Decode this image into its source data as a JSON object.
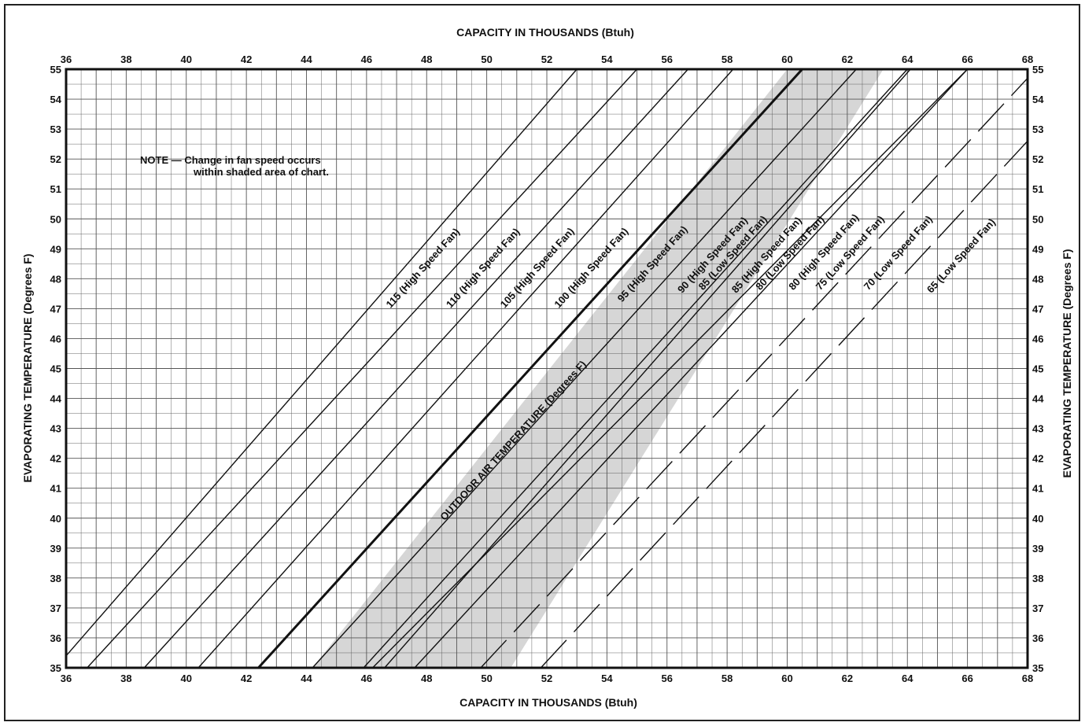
{
  "chart_data": {
    "type": "line",
    "title": "CAPACITY IN THOUSANDS (Btuh)",
    "xlabel": "CAPACITY IN THOUSANDS (Btuh)",
    "ylabel": "EVAPORATING TEMPERATURE (Degrees F)",
    "xlim": [
      36,
      68
    ],
    "ylim": [
      35,
      55
    ],
    "x_ticks": [
      "36",
      "38",
      "40",
      "42",
      "44",
      "46",
      "48",
      "50",
      "52",
      "54",
      "56",
      "58",
      "60",
      "62",
      "64",
      "66",
      "68"
    ],
    "y_ticks": [
      "35",
      "36",
      "37",
      "38",
      "39",
      "40",
      "41",
      "42",
      "43",
      "44",
      "45",
      "46",
      "47",
      "48",
      "49",
      "50",
      "51",
      "52",
      "53",
      "54",
      "55"
    ],
    "grid": true,
    "note_line1": "NOTE — Change in fan speed occurs",
    "note_line2": "within shaded area of chart.",
    "family_label": "OUTDOOR AIR TEMPERATURE (Degrees F)",
    "shaded_region": {
      "x_at_ymin": [
        44.2,
        50.8
      ],
      "x_at_ymax": [
        60.0,
        63.2
      ]
    },
    "series": [
      {
        "name": "115 (High Speed Fan)",
        "style": "solid",
        "x": [
          36.0,
          53.0
        ],
        "y": [
          35.4,
          55
        ]
      },
      {
        "name": "110 (High Speed Fan)",
        "style": "solid",
        "x": [
          36.7,
          55.0
        ],
        "y": [
          35,
          55
        ]
      },
      {
        "name": "105 (High Speed Fan)",
        "style": "solid",
        "x": [
          38.6,
          56.7
        ],
        "y": [
          35,
          55
        ]
      },
      {
        "name": "100 (High Speed Fan)",
        "style": "solid",
        "x": [
          40.4,
          58.2
        ],
        "y": [
          35,
          55
        ]
      },
      {
        "name": "95 (High Speed Fan)",
        "style": "bold",
        "x": [
          42.4,
          60.5
        ],
        "y": [
          35,
          55
        ]
      },
      {
        "name": "90 (High Speed Fan)",
        "style": "solid",
        "x": [
          44.2,
          62.3
        ],
        "y": [
          35,
          55
        ]
      },
      {
        "name": "85 (Low Speed Fan)",
        "style": "solid",
        "x": [
          45.9,
          64.0
        ],
        "y": [
          35,
          55
        ]
      },
      {
        "name": "85 (High Speed Fan)",
        "style": "solid",
        "x": [
          46.6,
          64.1
        ],
        "y": [
          35,
          55
        ]
      },
      {
        "name": "80 (Low Speed Fan)",
        "style": "solid",
        "x": [
          46.2,
          66.0
        ],
        "y": [
          35,
          55
        ]
      },
      {
        "name": "80 (High Speed Fan)",
        "style": "solid",
        "x": [
          47.6,
          66.0
        ],
        "y": [
          35,
          55
        ]
      },
      {
        "name": "75 (Low Speed Fan)",
        "style": "dashed",
        "x": [
          49.8,
          68.0
        ],
        "y": [
          35,
          54.7
        ]
      },
      {
        "name": "70 (Low Speed Fan)",
        "style": "dashed",
        "x": [
          51.8,
          68.0
        ],
        "y": [
          35,
          52.6
        ]
      },
      {
        "name": "65 (Low Speed Fan)",
        "style": "none",
        "x": [],
        "y": []
      }
    ],
    "curve_labels": [
      {
        "text": "115 (High Speed Fan)",
        "x": 46.8,
        "y": 47.0
      },
      {
        "text": "110 (High Speed Fan)",
        "x": 48.8,
        "y": 47.0
      },
      {
        "text": "105 (High Speed Fan)",
        "x": 50.6,
        "y": 47.0
      },
      {
        "text": "100 (High Speed Fan)",
        "x": 52.4,
        "y": 47.0
      },
      {
        "text": "95 (High Speed Fan)",
        "x": 54.5,
        "y": 47.2
      },
      {
        "text": "90 (High Speed Fan)",
        "x": 56.5,
        "y": 47.5
      },
      {
        "text": "85 (Low Speed Fan)",
        "x": 57.2,
        "y": 47.6
      },
      {
        "text": "85 (High Speed Fan)",
        "x": 58.3,
        "y": 47.5
      },
      {
        "text": "80 (Low Speed Fan)",
        "x": 59.1,
        "y": 47.6
      },
      {
        "text": "80 (High Speed Fan)",
        "x": 60.2,
        "y": 47.6
      },
      {
        "text": "75 (Low Speed Fan)",
        "x": 61.1,
        "y": 47.6
      },
      {
        "text": "70 (Low Speed Fan)",
        "x": 62.7,
        "y": 47.6
      },
      {
        "text": "65 (Low Speed Fan)",
        "x": 64.8,
        "y": 47.5
      }
    ],
    "family_label_pos": {
      "x": 48.6,
      "y": 39.9
    }
  }
}
